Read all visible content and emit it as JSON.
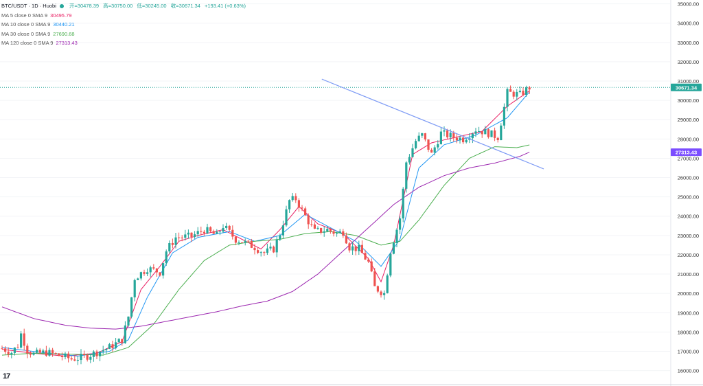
{
  "header": {
    "symbol": "BTC/USDT · 1D · Huobi",
    "open": "开=30478.39",
    "high": "高=30750.00",
    "low": "低=30245.00",
    "close": "收=30671.34",
    "change": "+193.41 (+0.63%)"
  },
  "indicators": [
    {
      "label": "MA 5 close 0 SMA 9",
      "value": "30495.79",
      "color": "#e91e63"
    },
    {
      "label": "MA 10 close 0 SMA 9",
      "value": "30440.21",
      "color": "#2196f3"
    },
    {
      "label": "MA 30 close 0 SMA 9",
      "value": "27690.68",
      "color": "#4caf50"
    },
    {
      "label": "MA 120 close 0 SMA 9",
      "value": "27313.43",
      "color": "#9c27b0"
    }
  ],
  "price_tags": {
    "last": {
      "text": "30671.34",
      "value": 30671.34,
      "color": "#26a69a"
    },
    "ma120": {
      "text": "27313.43",
      "value": 27313.43,
      "color": "#7b4dff"
    }
  },
  "logo_text": "17",
  "colors": {
    "up": "#26a69a",
    "down": "#ef5350",
    "trendline": "#7f9cf5"
  },
  "chart_data": {
    "type": "candlestick",
    "ylim": [
      15700,
      35200
    ],
    "yticks": [
      16000,
      17000,
      18000,
      19000,
      20000,
      21000,
      22000,
      23000,
      24000,
      25000,
      26000,
      27000,
      28000,
      29000,
      30000,
      31000,
      32000,
      33000,
      34000,
      35000
    ],
    "ytick_labels": [
      "16000.00",
      "17000.00",
      "18000.00",
      "19000.00",
      "20000.00",
      "21000.00",
      "22000.00",
      "23000.00",
      "24000.00",
      "25000.00",
      "26000.00",
      "27000.00",
      "28000.00",
      "29000.00",
      "30000.00",
      "31000.00",
      "32000.00",
      "33000.00",
      "34000.00",
      "35000.00"
    ],
    "candle_count": 168,
    "close_anchors": [
      [
        0,
        17150
      ],
      [
        3,
        16950
      ],
      [
        5,
        17300
      ],
      [
        6,
        17900
      ],
      [
        8,
        17050
      ],
      [
        10,
        16850
      ],
      [
        14,
        16950
      ],
      [
        18,
        16780
      ],
      [
        22,
        16600
      ],
      [
        26,
        16700
      ],
      [
        30,
        16950
      ],
      [
        34,
        17200
      ],
      [
        38,
        17600
      ],
      [
        40,
        18800
      ],
      [
        42,
        20800
      ],
      [
        46,
        21300
      ],
      [
        50,
        21100
      ],
      [
        52,
        22200
      ],
      [
        55,
        22900
      ],
      [
        60,
        22950
      ],
      [
        64,
        23300
      ],
      [
        68,
        23000
      ],
      [
        70,
        23500
      ],
      [
        74,
        22800
      ],
      [
        76,
        22700
      ],
      [
        80,
        22400
      ],
      [
        83,
        22100
      ],
      [
        86,
        22300
      ],
      [
        88,
        23100
      ],
      [
        91,
        24800
      ],
      [
        93,
        24900
      ],
      [
        96,
        24000
      ],
      [
        99,
        23200
      ],
      [
        103,
        23300
      ],
      [
        106,
        23100
      ],
      [
        108,
        23200
      ],
      [
        110,
        22400
      ],
      [
        113,
        22300
      ],
      [
        116,
        21600
      ],
      [
        118,
        20300
      ],
      [
        121,
        20000
      ],
      [
        123,
        22200
      ],
      [
        126,
        23900
      ],
      [
        128,
        26800
      ],
      [
        131,
        27900
      ],
      [
        133,
        28200
      ],
      [
        136,
        27200
      ],
      [
        139,
        28300
      ],
      [
        143,
        28100
      ],
      [
        146,
        28000
      ],
      [
        150,
        28500
      ],
      [
        154,
        28300
      ],
      [
        157,
        28100
      ],
      [
        160,
        30400
      ],
      [
        164,
        30300
      ],
      [
        167,
        30671
      ]
    ],
    "ma_series": [
      {
        "name": "MA 5",
        "color": "#e91e63",
        "anchors": [
          [
            0,
            17100
          ],
          [
            10,
            16900
          ],
          [
            20,
            16750
          ],
          [
            30,
            16900
          ],
          [
            38,
            17500
          ],
          [
            44,
            20200
          ],
          [
            50,
            21400
          ],
          [
            56,
            22700
          ],
          [
            62,
            23000
          ],
          [
            70,
            23300
          ],
          [
            76,
            22800
          ],
          [
            82,
            22300
          ],
          [
            88,
            23300
          ],
          [
            94,
            24500
          ],
          [
            100,
            23600
          ],
          [
            108,
            23100
          ],
          [
            116,
            21800
          ],
          [
            120,
            20600
          ],
          [
            124,
            22500
          ],
          [
            130,
            27200
          ],
          [
            136,
            27800
          ],
          [
            144,
            28100
          ],
          [
            152,
            28400
          ],
          [
            160,
            29700
          ],
          [
            167,
            30496
          ]
        ]
      },
      {
        "name": "MA 10",
        "color": "#2196f3",
        "anchors": [
          [
            0,
            17200
          ],
          [
            12,
            16950
          ],
          [
            24,
            16750
          ],
          [
            34,
            17000
          ],
          [
            40,
            17600
          ],
          [
            46,
            19800
          ],
          [
            54,
            22100
          ],
          [
            62,
            22900
          ],
          [
            72,
            23200
          ],
          [
            80,
            22700
          ],
          [
            88,
            23000
          ],
          [
            96,
            24100
          ],
          [
            104,
            23400
          ],
          [
            112,
            22700
          ],
          [
            120,
            21400
          ],
          [
            126,
            22800
          ],
          [
            132,
            26500
          ],
          [
            140,
            27700
          ],
          [
            150,
            28200
          ],
          [
            160,
            29100
          ],
          [
            167,
            30440
          ]
        ]
      },
      {
        "name": "MA 30",
        "color": "#4caf50",
        "anchors": [
          [
            0,
            16800
          ],
          [
            10,
            16900
          ],
          [
            22,
            16850
          ],
          [
            32,
            16800
          ],
          [
            40,
            17200
          ],
          [
            48,
            18400
          ],
          [
            56,
            20200
          ],
          [
            64,
            21700
          ],
          [
            72,
            22500
          ],
          [
            80,
            22700
          ],
          [
            88,
            22800
          ],
          [
            96,
            23100
          ],
          [
            104,
            23200
          ],
          [
            112,
            23000
          ],
          [
            120,
            22500
          ],
          [
            126,
            22700
          ],
          [
            132,
            23800
          ],
          [
            140,
            25600
          ],
          [
            148,
            27000
          ],
          [
            156,
            27600
          ],
          [
            163,
            27550
          ],
          [
            167,
            27691
          ]
        ]
      },
      {
        "name": "MA 120",
        "color": "#9c27b0",
        "anchors": [
          [
            0,
            19300
          ],
          [
            10,
            18700
          ],
          [
            20,
            18350
          ],
          [
            28,
            18200
          ],
          [
            36,
            18150
          ],
          [
            44,
            18300
          ],
          [
            52,
            18550
          ],
          [
            60,
            18800
          ],
          [
            68,
            19050
          ],
          [
            76,
            19350
          ],
          [
            84,
            19600
          ],
          [
            92,
            20100
          ],
          [
            100,
            21000
          ],
          [
            108,
            22200
          ],
          [
            116,
            23400
          ],
          [
            124,
            24600
          ],
          [
            132,
            25500
          ],
          [
            140,
            26100
          ],
          [
            148,
            26500
          ],
          [
            156,
            26750
          ],
          [
            164,
            27100
          ],
          [
            167,
            27313
          ]
        ]
      }
    ],
    "trendline": {
      "from": [
        123,
        31100
      ],
      "to": [
        175,
        26450
      ]
    }
  }
}
